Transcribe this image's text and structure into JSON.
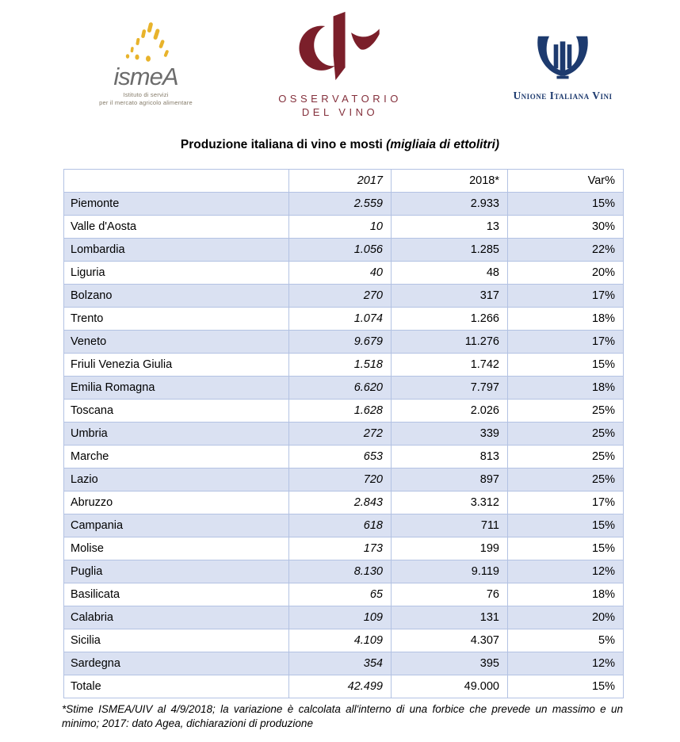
{
  "logos": {
    "ismea": {
      "wordmark": "ismeA",
      "tagline1": "Istituto di servizi",
      "tagline2": "per il mercato agricolo alimentare"
    },
    "osservatorio": {
      "line1": "OSSERVATORIO",
      "line2": "DEL VINO"
    },
    "uiv": {
      "name": "Unione Italiana Vini"
    }
  },
  "title": {
    "main": "Produzione italiana di vino e mosti",
    "unit": "(migliaia di ettolitri)"
  },
  "table": {
    "headers": {
      "region": "",
      "y2017": "2017",
      "y2018": "2018*",
      "var": "Var%"
    },
    "rows": [
      {
        "region": "Piemonte",
        "y2017": "2.559",
        "y2018": "2.933",
        "var": "15%"
      },
      {
        "region": "Valle d'Aosta",
        "y2017": "10",
        "y2018": "13",
        "var": "30%"
      },
      {
        "region": "Lombardia",
        "y2017": "1.056",
        "y2018": "1.285",
        "var": "22%"
      },
      {
        "region": "Liguria",
        "y2017": "40",
        "y2018": "48",
        "var": "20%"
      },
      {
        "region": "Bolzano",
        "y2017": "270",
        "y2018": "317",
        "var": "17%"
      },
      {
        "region": "Trento",
        "y2017": "1.074",
        "y2018": "1.266",
        "var": "18%"
      },
      {
        "region": "Veneto",
        "y2017": "9.679",
        "y2018": "11.276",
        "var": "17%"
      },
      {
        "region": "Friuli Venezia Giulia",
        "y2017": "1.518",
        "y2018": "1.742",
        "var": "15%"
      },
      {
        "region": "Emilia Romagna",
        "y2017": "6.620",
        "y2018": "7.797",
        "var": "18%"
      },
      {
        "region": "Toscana",
        "y2017": "1.628",
        "y2018": "2.026",
        "var": "25%"
      },
      {
        "region": "Umbria",
        "y2017": "272",
        "y2018": "339",
        "var": "25%"
      },
      {
        "region": "Marche",
        "y2017": "653",
        "y2018": "813",
        "var": "25%"
      },
      {
        "region": "Lazio",
        "y2017": "720",
        "y2018": "897",
        "var": "25%"
      },
      {
        "region": "Abruzzo",
        "y2017": "2.843",
        "y2018": "3.312",
        "var": "17%"
      },
      {
        "region": "Campania",
        "y2017": "618",
        "y2018": "711",
        "var": "15%"
      },
      {
        "region": "Molise",
        "y2017": "173",
        "y2018": "199",
        "var": "15%"
      },
      {
        "region": "Puglia",
        "y2017": "8.130",
        "y2018": "9.119",
        "var": "12%"
      },
      {
        "region": "Basilicata",
        "y2017": "65",
        "y2018": "76",
        "var": "18%"
      },
      {
        "region": "Calabria",
        "y2017": "109",
        "y2018": "131",
        "var": "20%"
      },
      {
        "region": "Sicilia",
        "y2017": "4.109",
        "y2018": "4.307",
        "var": "5%"
      },
      {
        "region": "Sardegna",
        "y2017": "354",
        "y2018": "395",
        "var": "12%"
      }
    ],
    "total": {
      "region": "Totale",
      "y2017": "42.499",
      "y2018": "49.000",
      "var": "15%"
    }
  },
  "footnote": "*Stime ISMEA/UIV al 4/9/2018; la variazione è calcolata all'interno di una forbice che prevede un massimo e un minimo; 2017: dato Agea, dichiarazioni di produzione",
  "colors": {
    "maroon": "#7b1f2a",
    "navy": "#1d3a6e",
    "gold": "#e8b32b",
    "row_band": "#dae1f2",
    "table_border": "#b3c2e3",
    "header_rule": "#8ea9da",
    "ismea_gray": "#6c6c6c"
  }
}
